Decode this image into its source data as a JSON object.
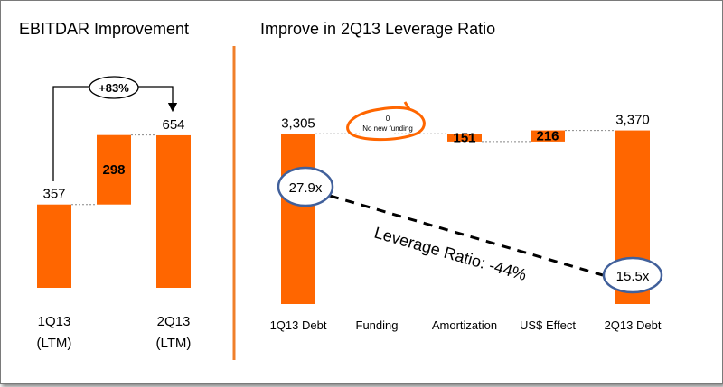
{
  "colors": {
    "bar": "#ff6600",
    "divider": "#f07f2a",
    "bubble_border": "#41609b"
  },
  "left_panel": {
    "title": "EBITDAR Improvement"
  },
  "right_panel": {
    "title": "Improve in 2Q13 Leverage Ratio"
  },
  "chart_data": [
    {
      "type": "bar",
      "subtype": "waterfall",
      "title": "EBITDAR Improvement",
      "categories": [
        "1Q13\n(LTM)",
        "",
        "2Q13\n(LTM)"
      ],
      "category_lines": [
        [
          "1Q13",
          "(LTM)"
        ],
        [
          "",
          ""
        ],
        [
          "2Q13",
          "(LTM)"
        ]
      ],
      "steps": [
        {
          "kind": "total",
          "value": 357,
          "label": "357"
        },
        {
          "kind": "increase",
          "value": 298,
          "label": "298"
        },
        {
          "kind": "total",
          "value": 654,
          "label": "654"
        }
      ],
      "annotation": {
        "text": "+83%"
      },
      "axes_visible": false,
      "grid": false
    },
    {
      "type": "bar",
      "subtype": "waterfall",
      "title": "Improve in 2Q13 Leverage Ratio",
      "categories": [
        "1Q13 Debt",
        "Funding",
        "Amortization",
        "US$ Effect",
        "2Q13 Debt"
      ],
      "steps": [
        {
          "kind": "total",
          "value": 3305,
          "label": "3,305"
        },
        {
          "kind": "change",
          "value": 0,
          "label": "0",
          "note": "No new funding"
        },
        {
          "kind": "decrease",
          "value": 151,
          "label": "151"
        },
        {
          "kind": "increase",
          "value": 216,
          "label": "216"
        },
        {
          "kind": "total",
          "value": 3370,
          "label": "3,370"
        }
      ],
      "leverage": {
        "start": "27.9x",
        "end": "15.5x",
        "label": "Leverage Ratio: -44%"
      },
      "axes_visible": false,
      "grid": false
    }
  ]
}
